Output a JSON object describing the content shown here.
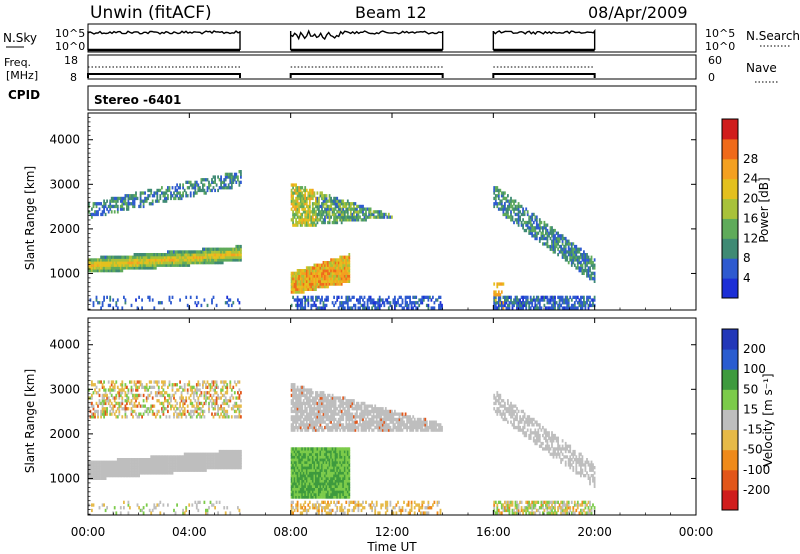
{
  "header": {
    "site": "Unwin (fitACF)",
    "beam": "Beam 12",
    "date": "08/Apr/2009"
  },
  "top_labels": {
    "nsky": "N.Sky",
    "nsky_ticks": [
      "10^5",
      "10^0"
    ],
    "nsky_ticks_right": [
      "10^5",
      "10^0"
    ],
    "nsearch": "N.Search",
    "freq": "Freq.",
    "freq_unit": "[MHz]",
    "freq_ticks": [
      "18",
      "8"
    ],
    "nave": "Nave",
    "nave_ticks": [
      "60",
      "0"
    ],
    "cpid_label": "CPID",
    "cpid_value": "Stereo -6401"
  },
  "colors": {
    "power": [
      "#1c2fd6",
      "#2e5ad0",
      "#3f8a74",
      "#5fab5a",
      "#a8c23a",
      "#e4c01e",
      "#f4a020",
      "#ef6a1a",
      "#d01c1c"
    ],
    "velocity": [
      "#d01c1c",
      "#e2561a",
      "#ef8a1a",
      "#e6ba48",
      "#bebebe",
      "#7ccb4a",
      "#3e9a3e",
      "#2a5cd0",
      "#2237b8"
    ]
  },
  "chart_data": [
    {
      "type": "heatmap",
      "name": "power",
      "xlabel": "",
      "ylabel": "Slant Range [km]",
      "ylim": [
        180,
        4600
      ],
      "yticks": [
        "1000",
        "2000",
        "3000",
        "4000"
      ],
      "colorbar_label": "Power [dB]",
      "colorbar_ticks": [
        "4",
        "8",
        "12",
        "16",
        "20",
        "24",
        "28"
      ],
      "xlim": [
        0,
        24
      ],
      "data_intervals_ut": [
        [
          0.0,
          6.0
        ],
        [
          8.0,
          14.0
        ],
        [
          16.0,
          20.0
        ]
      ]
    },
    {
      "type": "heatmap",
      "name": "velocity",
      "xlabel": "Time UT",
      "ylabel": "Slant Range [km]",
      "ylim": [
        180,
        4600
      ],
      "yticks": [
        "1000",
        "2000",
        "3000",
        "4000"
      ],
      "colorbar_label": "Velocity [m s⁻¹]",
      "colorbar_ticks": [
        "-200",
        "-100",
        "-50",
        "-15",
        "15",
        "50",
        "100",
        "200"
      ],
      "xticks": [
        "00:00",
        "04:00",
        "08:00",
        "12:00",
        "16:00",
        "20:00",
        "00:00"
      ],
      "xlim": [
        0,
        24
      ],
      "data_intervals_ut": [
        [
          0.0,
          6.0
        ],
        [
          8.0,
          14.0
        ],
        [
          16.0,
          20.0
        ]
      ]
    }
  ]
}
